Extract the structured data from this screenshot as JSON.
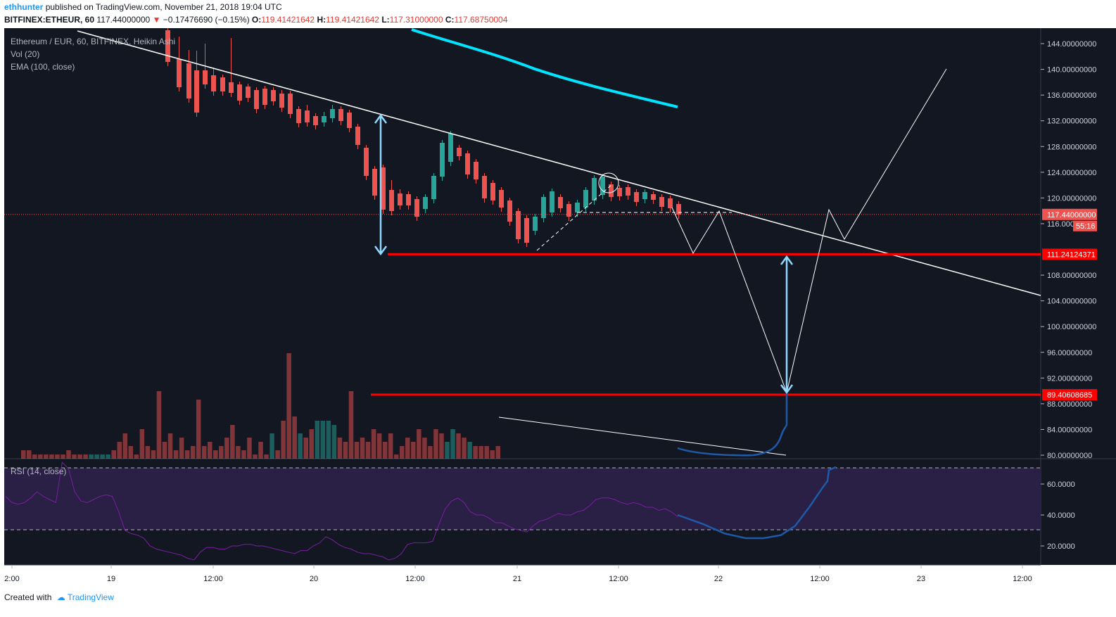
{
  "header": {
    "author": "ethhunter",
    "published": "published on TradingView.com, November 21, 2018 19:04 UTC",
    "symbol": "BITFINEX:ETHEUR, 60",
    "last": "117.44000000",
    "change": "−0.17476690 (−0.15%)",
    "open_label": "O:",
    "open": "119.41421642",
    "high_label": "H:",
    "high": "119.41421642",
    "low_label": "L:",
    "low": "117.31000000",
    "close_label": "C:",
    "close": "117.68750004"
  },
  "legend": {
    "title": "Ethereum / EUR, 60, BITFINEX, Heikin Ashi",
    "vol": "Vol (20)",
    "ema": "EMA (100, close)",
    "rsi": "RSI (14, close)"
  },
  "footer": {
    "created": "Created with",
    "brand": "TradingView"
  },
  "colors": {
    "background": "#131722",
    "up": "#26a69a",
    "down": "#ef5350",
    "ema": "#00e5ff",
    "level": "#ff0000",
    "rsi": "#7b1fa2",
    "rsi_band": "#2a1f45",
    "projection": "#1e5aa8"
  },
  "chart_data": {
    "type": "candlestick",
    "price_axis": {
      "ticks": [
        144,
        140,
        136,
        132,
        128,
        124,
        120,
        116,
        108,
        104,
        100,
        96,
        92,
        88,
        84,
        80
      ],
      "tick_labels": [
        "144.00000000",
        "140.00000000",
        "136.00000000",
        "132.00000000",
        "128.00000000",
        "124.00000000",
        "120.00000000",
        "116.00000000",
        "108.00000000",
        "104.00000000",
        "100.00000000",
        "96.00000000",
        "92.00000000",
        "88.00000000",
        "84.00000000",
        "80.00000000"
      ],
      "range": [
        80,
        146
      ]
    },
    "current_price": {
      "value": 117.44,
      "label": "117.44000000",
      "countdown": "55:16"
    },
    "levels": [
      {
        "value": 111.24124371,
        "label": "111.24124371"
      },
      {
        "value": 89.40608685,
        "label": "89.40608685"
      }
    ],
    "time_axis": {
      "labels": [
        "2:00",
        "19",
        "12:00",
        "20",
        "12:00",
        "21",
        "12:00",
        "22",
        "12:00",
        "23",
        "12:00"
      ]
    },
    "rsi": {
      "ticks": [
        60,
        40,
        20
      ],
      "tick_labels": [
        "60.0000",
        "40.0000",
        "20.0000"
      ],
      "bands": [
        70,
        30
      ],
      "values": [
        52,
        48,
        47,
        48,
        51,
        55,
        52,
        50,
        48,
        74,
        70,
        55,
        49,
        48,
        50,
        52,
        53,
        52,
        42,
        30,
        28,
        27,
        25,
        20,
        18,
        17,
        16,
        15,
        14,
        12,
        11,
        16,
        19,
        19,
        18,
        18,
        20,
        20,
        21,
        21,
        20,
        20,
        19,
        18,
        17,
        16,
        15,
        17,
        17,
        20,
        22,
        26,
        24,
        21,
        19,
        18,
        16,
        15,
        15,
        14,
        13,
        11,
        12,
        15,
        21,
        22,
        22,
        22,
        23,
        34,
        44,
        49,
        51,
        48,
        42,
        40,
        40,
        38,
        35,
        35,
        33,
        31,
        30,
        29,
        33,
        36,
        37,
        39,
        41,
        40,
        40,
        42,
        43,
        46,
        50,
        51,
        51,
        50,
        48,
        47,
        48,
        47,
        45,
        45,
        43,
        44,
        42,
        39
      ]
    },
    "rsi_projection": [
      [
        963,
        40
      ],
      [
        1000,
        34
      ],
      [
        1030,
        28
      ],
      [
        1060,
        25
      ],
      [
        1085,
        25
      ],
      [
        1110,
        27
      ],
      [
        1130,
        33
      ],
      [
        1150,
        45
      ],
      [
        1168,
        57
      ],
      [
        1176,
        62
      ],
      [
        1178,
        69
      ],
      [
        1183,
        70
      ],
      [
        1188,
        71
      ]
    ]
  }
}
